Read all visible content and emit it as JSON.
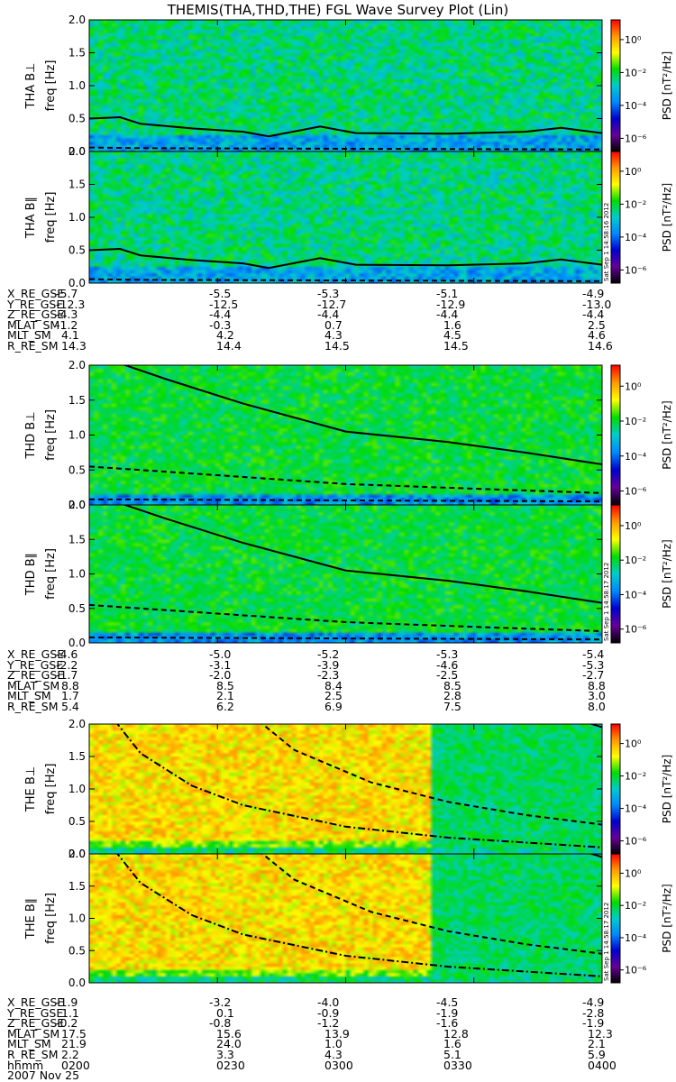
{
  "title": "THEMIS(THA,THD,THE) FGL Wave Survey Plot (Lin)",
  "colorbar": {
    "label": "PSD [nT²/Hz]",
    "ticks": [
      "10⁰",
      "10⁻²",
      "10⁻⁴",
      "10⁻⁶"
    ],
    "colors": [
      "#ff0000",
      "#ff9900",
      "#ffff00",
      "#00dd00",
      "#00cccc",
      "#0088ff",
      "#0000cc",
      "#660099",
      "#000000"
    ]
  },
  "timestamps": {
    "tha": "Sat Sep 1 14:58:16 2012",
    "thd": "Sat Sep 1 14:58:17 2012",
    "the": "Sat Sep 1 14:58:17 2012"
  },
  "chart_data": {
    "type": "heatmap",
    "x_ticks": [
      "0200",
      "0230",
      "0300",
      "0330",
      "0400"
    ],
    "x_range": [
      "0200",
      "0400"
    ],
    "ylim": [
      0.0,
      2.0
    ],
    "y_ticks": [
      "0.0",
      "0.5",
      "1.0",
      "1.5",
      "2.0"
    ],
    "panels": [
      {
        "id": "tha-perp",
        "ylabel": "THA B⊥",
        "yunit": "freq [Hz]",
        "ts": "tha",
        "solid": [
          [
            0,
            0.5
          ],
          [
            0.06,
            0.52
          ],
          [
            0.1,
            0.42
          ],
          [
            0.2,
            0.35
          ],
          [
            0.3,
            0.3
          ],
          [
            0.35,
            0.23
          ],
          [
            0.45,
            0.38
          ],
          [
            0.52,
            0.28
          ],
          [
            0.7,
            0.27
          ],
          [
            0.85,
            0.3
          ],
          [
            0.92,
            0.36
          ],
          [
            1,
            0.28
          ]
        ],
        "dashed": [
          [
            0,
            0.06
          ],
          [
            0.1,
            0.05
          ],
          [
            1,
            0.03
          ]
        ]
      },
      {
        "id": "tha-par",
        "ylabel": "THA B∥",
        "yunit": "freq [Hz]",
        "ts": "tha",
        "solid": [
          [
            0,
            0.5
          ],
          [
            0.06,
            0.52
          ],
          [
            0.1,
            0.42
          ],
          [
            0.2,
            0.35
          ],
          [
            0.3,
            0.3
          ],
          [
            0.35,
            0.23
          ],
          [
            0.45,
            0.38
          ],
          [
            0.52,
            0.28
          ],
          [
            0.7,
            0.27
          ],
          [
            0.85,
            0.3
          ],
          [
            0.92,
            0.36
          ],
          [
            1,
            0.28
          ]
        ],
        "dashed": [
          [
            0,
            0.06
          ],
          [
            0.1,
            0.05
          ],
          [
            1,
            0.03
          ]
        ]
      },
      {
        "id": "thd-perp",
        "ylabel": "THD B⊥",
        "yunit": "freq [Hz]",
        "ts": "thd",
        "solid": [
          [
            0.05,
            2.05
          ],
          [
            0.15,
            1.8
          ],
          [
            0.3,
            1.45
          ],
          [
            0.5,
            1.05
          ],
          [
            0.7,
            0.9
          ],
          [
            0.85,
            0.75
          ],
          [
            1,
            0.58
          ]
        ],
        "dashed": [
          [
            0,
            0.55
          ],
          [
            0.2,
            0.45
          ],
          [
            0.5,
            0.3
          ],
          [
            0.8,
            0.22
          ],
          [
            1,
            0.17
          ]
        ],
        "dashed2": [
          [
            0,
            0.08
          ],
          [
            1,
            0.05
          ]
        ]
      },
      {
        "id": "thd-par",
        "ylabel": "THD B∥",
        "yunit": "freq [Hz]",
        "ts": "thd",
        "solid": [
          [
            0.05,
            2.05
          ],
          [
            0.15,
            1.8
          ],
          [
            0.3,
            1.45
          ],
          [
            0.5,
            1.05
          ],
          [
            0.7,
            0.9
          ],
          [
            0.85,
            0.75
          ],
          [
            1,
            0.58
          ]
        ],
        "dashed": [
          [
            0,
            0.55
          ],
          [
            0.2,
            0.45
          ],
          [
            0.5,
            0.3
          ],
          [
            0.8,
            0.22
          ],
          [
            1,
            0.17
          ]
        ],
        "dashed2": [
          [
            0,
            0.08
          ],
          [
            1,
            0.05
          ]
        ]
      },
      {
        "id": "the-perp",
        "ylabel": "THE B⊥",
        "yunit": "freq [Hz]",
        "ts": "the",
        "dashdot": [
          [
            0.05,
            2.05
          ],
          [
            0.1,
            1.55
          ],
          [
            0.2,
            1.05
          ],
          [
            0.3,
            0.75
          ],
          [
            0.5,
            0.42
          ],
          [
            0.7,
            0.25
          ],
          [
            1,
            0.1
          ]
        ],
        "dashed": [
          [
            0.33,
            2.05
          ],
          [
            0.4,
            1.6
          ],
          [
            0.55,
            1.1
          ],
          [
            0.7,
            0.8
          ],
          [
            0.85,
            0.6
          ],
          [
            1,
            0.45
          ]
        ],
        "solid": [
          [
            0.96,
            2.05
          ],
          [
            1,
            1.95
          ]
        ],
        "saturation": {
          "hot_end": 0.66
        }
      },
      {
        "id": "the-par",
        "ylabel": "THE B∥",
        "yunit": "freq [Hz]",
        "ts": "the",
        "dashdot": [
          [
            0.05,
            2.05
          ],
          [
            0.1,
            1.55
          ],
          [
            0.2,
            1.05
          ],
          [
            0.3,
            0.75
          ],
          [
            0.5,
            0.42
          ],
          [
            0.7,
            0.25
          ],
          [
            1,
            0.1
          ]
        ],
        "dashed": [
          [
            0.33,
            2.05
          ],
          [
            0.4,
            1.6
          ],
          [
            0.55,
            1.1
          ],
          [
            0.7,
            0.8
          ],
          [
            0.85,
            0.6
          ],
          [
            1,
            0.45
          ]
        ],
        "solid": [
          [
            0.96,
            2.05
          ],
          [
            1,
            1.95
          ]
        ],
        "saturation": {
          "hot_end": 0.66
        }
      }
    ]
  },
  "ephemeris": [
    {
      "id": "tha",
      "rows": [
        [
          "X_RE_GSE",
          "-5.7",
          "-5.5",
          "-5.3",
          "-5.1",
          "-4.9"
        ],
        [
          "Y_RE_GSE",
          "-12.3",
          "-12.5",
          "-12.7",
          "-12.9",
          "-13.0"
        ],
        [
          "Z_RE_GSE",
          "-4.3",
          "-4.4",
          "-4.4",
          "-4.4",
          "-4.4"
        ],
        [
          "MLAT_SM",
          "-1.2",
          "-0.3",
          "0.7",
          "1.6",
          "2.5"
        ],
        [
          "MLT_SM",
          "4.1",
          "4.2",
          "4.3",
          "4.5",
          "4.6"
        ],
        [
          "R_RE_SM",
          "14.3",
          "14.4",
          "14.5",
          "14.5",
          "14.6"
        ]
      ]
    },
    {
      "id": "thd",
      "rows": [
        [
          "X_RE_GSE",
          "-4.6",
          "-5.0",
          "-5.2",
          "-5.3",
          "-5.4"
        ],
        [
          "Y_RE_GSE",
          "-2.2",
          "-3.1",
          "-3.9",
          "-4.6",
          "-5.3"
        ],
        [
          "Z_RE_GSE",
          "-1.7",
          "-2.0",
          "-2.3",
          "-2.5",
          "-2.7"
        ],
        [
          "MLAT_SM",
          "8.8",
          "8.5",
          "8.4",
          "8.5",
          "8.8"
        ],
        [
          "MLT_SM",
          "1.7",
          "2.1",
          "2.5",
          "2.8",
          "3.0"
        ],
        [
          "R_RE_SM",
          "5.4",
          "6.2",
          "6.9",
          "7.5",
          "8.0"
        ]
      ]
    },
    {
      "id": "the",
      "rows": [
        [
          "X_RE_GSE",
          "-1.9",
          "-3.2",
          "-4.0",
          "-4.5",
          "-4.9"
        ],
        [
          "Y_RE_GSE",
          "1.1",
          "0.1",
          "-0.9",
          "-1.9",
          "-2.8"
        ],
        [
          "Z_RE_GSE",
          "-0.2",
          "-0.8",
          "-1.2",
          "-1.6",
          "-1.9"
        ],
        [
          "MLAT_SM",
          "17.5",
          "15.6",
          "13.9",
          "12.8",
          "12.3"
        ],
        [
          "MLT_SM",
          "21.9",
          "24.0",
          "1.0",
          "1.6",
          "2.1"
        ],
        [
          "R_RE_SM",
          "2.2",
          "3.3",
          "4.3",
          "5.1",
          "5.9"
        ],
        [
          "hhmm",
          "0200",
          "0230",
          "0300",
          "0330",
          "0400"
        ]
      ]
    }
  ],
  "date": "2007 Nov 25"
}
